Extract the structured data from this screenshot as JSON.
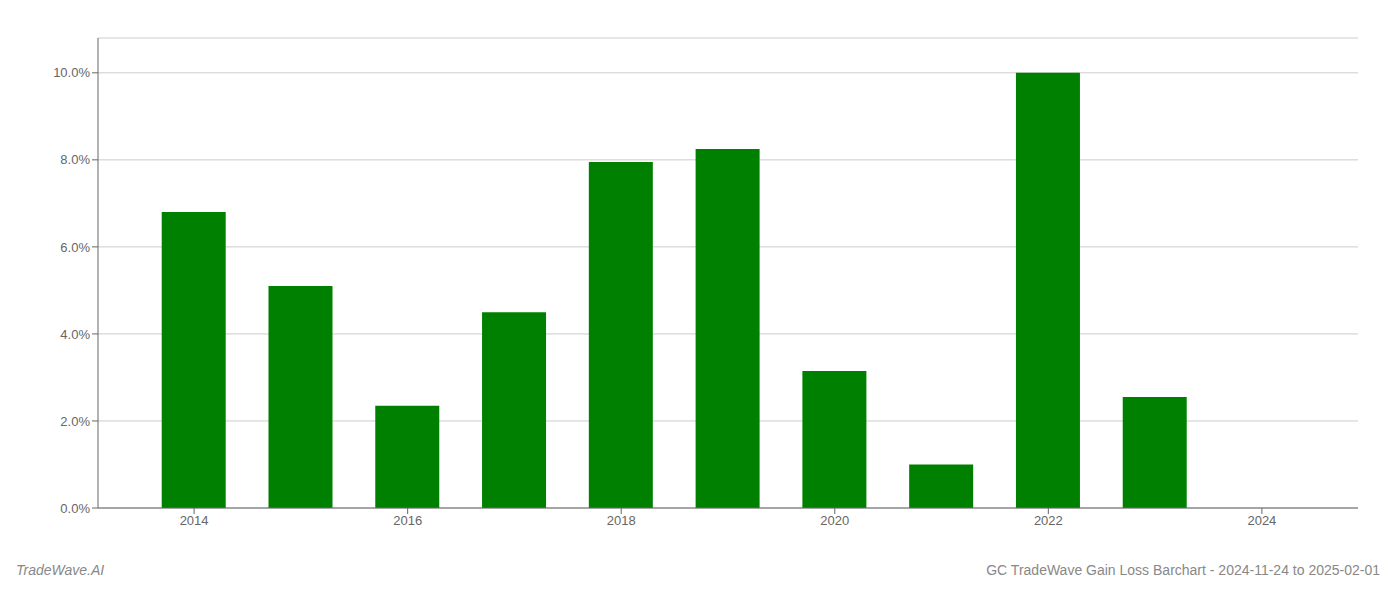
{
  "chart_data": {
    "type": "bar",
    "title": "GC TradeWave Gain Loss Barchart - 2024-11-24 to 2025-02-01",
    "annotations": [
      "TradeWave.AI"
    ],
    "x": [
      2014,
      2015,
      2016,
      2017,
      2018,
      2019,
      2020,
      2021,
      2022,
      2023
    ],
    "values": [
      0.068,
      0.051,
      0.0235,
      0.045,
      0.0795,
      0.0825,
      0.0315,
      0.01,
      0.1,
      0.0255
    ],
    "color": "#008000",
    "xlim": [
      2013.1,
      2024.9
    ],
    "xticks": [
      2014,
      2016,
      2018,
      2020,
      2022,
      2024
    ],
    "ylim": [
      0,
      0.108
    ],
    "yticks": [
      {
        "value": 0.0,
        "label": "0.0%"
      },
      {
        "value": 0.02,
        "label": "2.0%"
      },
      {
        "value": 0.04,
        "label": "4.0%"
      },
      {
        "value": 0.06,
        "label": "6.0%"
      },
      {
        "value": 0.08,
        "label": "8.0%"
      },
      {
        "value": 0.1,
        "label": "10.0%"
      }
    ],
    "grid": true
  }
}
